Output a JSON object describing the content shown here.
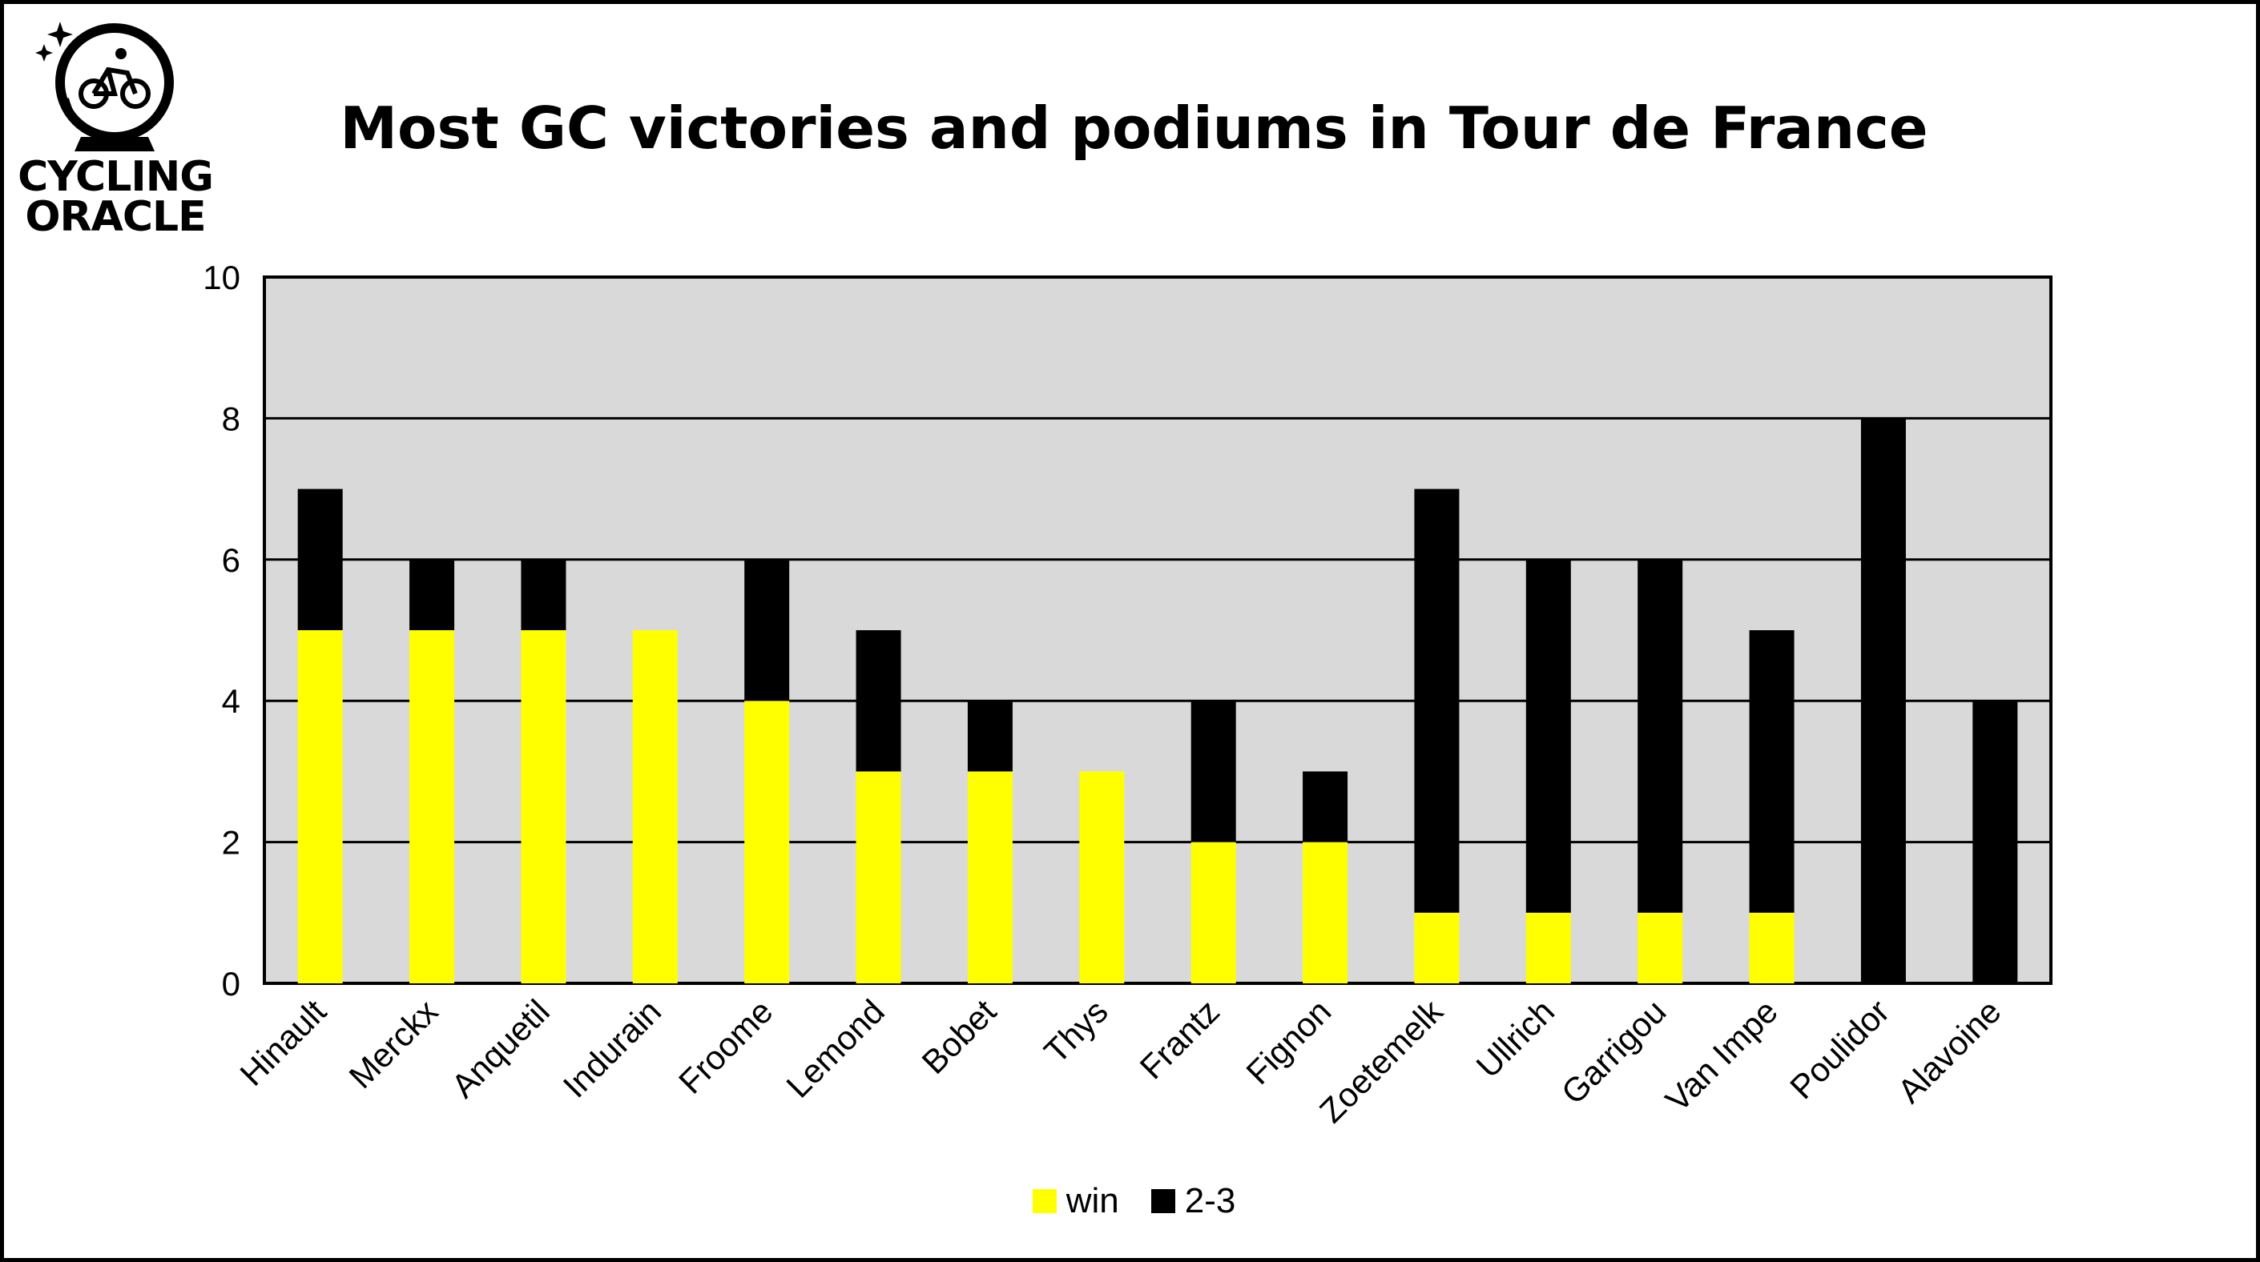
{
  "logo": {
    "line1": "CYCLING",
    "line2": "ORACLE"
  },
  "colors": {
    "win": "#ffff00",
    "podium": "#000000",
    "plot_bg": "#d9d9d9"
  },
  "chart_data": {
    "type": "bar",
    "stacked": true,
    "title": "Most GC victories and podiums in Tour de France",
    "xlabel": "",
    "ylabel": "",
    "ylim": [
      0,
      10
    ],
    "yticks": [
      0,
      2,
      4,
      6,
      8,
      10
    ],
    "grid": true,
    "legend_position": "bottom",
    "categories": [
      "Hinault",
      "Merckx",
      "Anquetil",
      "Indurain",
      "Froome",
      "Lemond",
      "Bobet",
      "Thys",
      "Frantz",
      "Fignon",
      "Zoetemelk",
      "Ullrich",
      "Garrigou",
      "Van Impe",
      "Poulidor",
      "Alavoine"
    ],
    "series": [
      {
        "name": "win",
        "color": "#ffff00",
        "values": [
          5,
          5,
          5,
          5,
          4,
          3,
          3,
          3,
          2,
          2,
          1,
          1,
          1,
          1,
          0,
          0
        ]
      },
      {
        "name": "2-3",
        "color": "#000000",
        "values": [
          2,
          1,
          1,
          0,
          2,
          2,
          1,
          0,
          2,
          1,
          6,
          5,
          5,
          4,
          8,
          4
        ]
      }
    ]
  }
}
